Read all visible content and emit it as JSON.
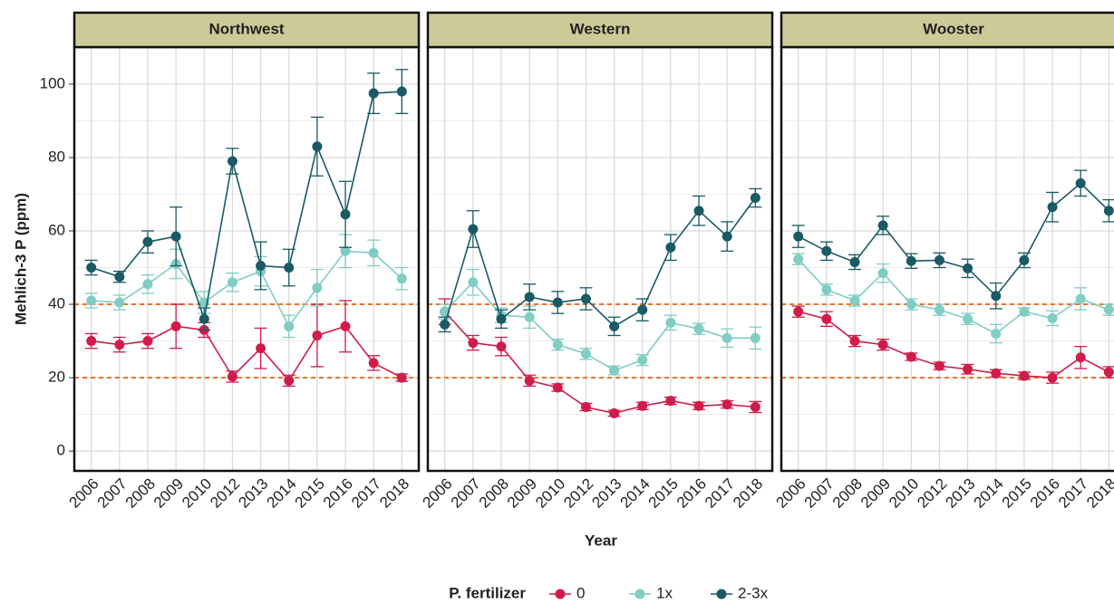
{
  "chart_data": {
    "type": "line",
    "y_label": "Mehlich-3 P (ppm)",
    "x_label": "Year",
    "legend_title": "P. fertilizer",
    "ylim": [
      -5.4,
      110.1
    ],
    "yticks": [
      0,
      20,
      40,
      60,
      80,
      100
    ],
    "hlines": [
      20,
      40
    ],
    "hline_color": "#e8742c",
    "grid": true,
    "series": [
      {
        "name": "0",
        "color": "#d01c4b"
      },
      {
        "name": "1x",
        "color": "#7fcdc3"
      },
      {
        "name": "2-3x",
        "color": "#195a64"
      }
    ],
    "facets": [
      {
        "title": "Northwest",
        "categories": [
          "2006",
          "2007",
          "2008",
          "2009",
          "2010",
          "2012",
          "2013",
          "2014",
          "2015",
          "2016",
          "2017",
          "2018"
        ],
        "series": [
          {
            "values": [
              30,
              29,
              30,
              34,
              33,
              20.3,
              28,
              19.2,
              31.5,
              34,
              24,
              20
            ],
            "errors": [
              2,
              2,
              2,
              6,
              2,
              1.5,
              5.5,
              1.5,
              8.5,
              7,
              2,
              1
            ]
          },
          {
            "values": [
              41,
              40.5,
              45.5,
              51,
              40.5,
              46,
              49,
              34,
              44.5,
              54.5,
              54,
              47
            ],
            "errors": [
              2,
              2,
              2.5,
              4,
              3,
              2.5,
              4,
              3,
              5,
              4.5,
              3.5,
              3
            ]
          },
          {
            "values": [
              50,
              47.5,
              57,
              58.5,
              36,
              79,
              50.5,
              50,
              83,
              64.5,
              97.5,
              98
            ],
            "errors": [
              2,
              1.5,
              3,
              8,
              3,
              3.5,
              6.5,
              5,
              8,
              9,
              5.5,
              6
            ]
          }
        ]
      },
      {
        "title": "Western",
        "categories": [
          "2006",
          "2007",
          "2008",
          "2009",
          "2010",
          "2012",
          "2013",
          "2014",
          "2015",
          "2016",
          "2017",
          "2018"
        ],
        "series": [
          {
            "values": [
              38,
              29.5,
              28.5,
              19.2,
              17.3,
              12,
              10.3,
              12.3,
              13.7,
              12.3,
              12.7,
              12
            ],
            "errors": [
              3.5,
              2,
              2.5,
              1.5,
              1,
              1,
              0.8,
              1,
              1,
              1,
              1,
              1.5
            ]
          },
          {
            "values": [
              38,
              46,
              37,
              36.5,
              29,
              26.5,
              22,
              24.8,
              35,
              33.3,
              30.8,
              30.8
            ],
            "errors": [
              2,
              3.5,
              2,
              3,
              1.5,
              1.5,
              1.2,
              1.5,
              2,
              1.5,
              2.5,
              3
            ]
          },
          {
            "values": [
              34.5,
              60.5,
              36,
              42,
              40.5,
              41.5,
              34,
              38.5,
              55.5,
              65.5,
              58.5,
              69
            ],
            "errors": [
              2,
              5,
              2.5,
              3.5,
              3,
              3,
              2.5,
              3,
              3.5,
              4,
              4,
              2.5
            ]
          }
        ]
      },
      {
        "title": "Wooster",
        "categories": [
          "2006",
          "2007",
          "2008",
          "2009",
          "2010",
          "2012",
          "2013",
          "2014",
          "2015",
          "2016",
          "2017",
          "2018"
        ],
        "series": [
          {
            "values": [
              38,
              36,
              30,
              29,
              25.7,
              23.2,
              22.3,
              21.2,
              20.5,
              20,
              25.5,
              21.5
            ],
            "errors": [
              1.5,
              2,
              1.5,
              1.5,
              1,
              1,
              1.3,
              1,
              1,
              1.5,
              3,
              1.5
            ]
          },
          {
            "values": [
              52.3,
              44,
              41,
              48.5,
              40,
              38.5,
              36,
              32,
              38,
              36.2,
              41.5,
              38.5
            ],
            "errors": [
              1.5,
              1.5,
              1.5,
              2.5,
              1.5,
              1.5,
              1.5,
              2.5,
              1,
              2,
              3,
              1.5
            ]
          },
          {
            "values": [
              58.5,
              54.5,
              51.5,
              61.5,
              51.8,
              52,
              49.8,
              42.3,
              52,
              66.5,
              73,
              65.5
            ],
            "errors": [
              3,
              2.5,
              2,
              2.5,
              2,
              2,
              2.5,
              3.5,
              2,
              4,
              3.5,
              3
            ]
          }
        ]
      }
    ]
  }
}
